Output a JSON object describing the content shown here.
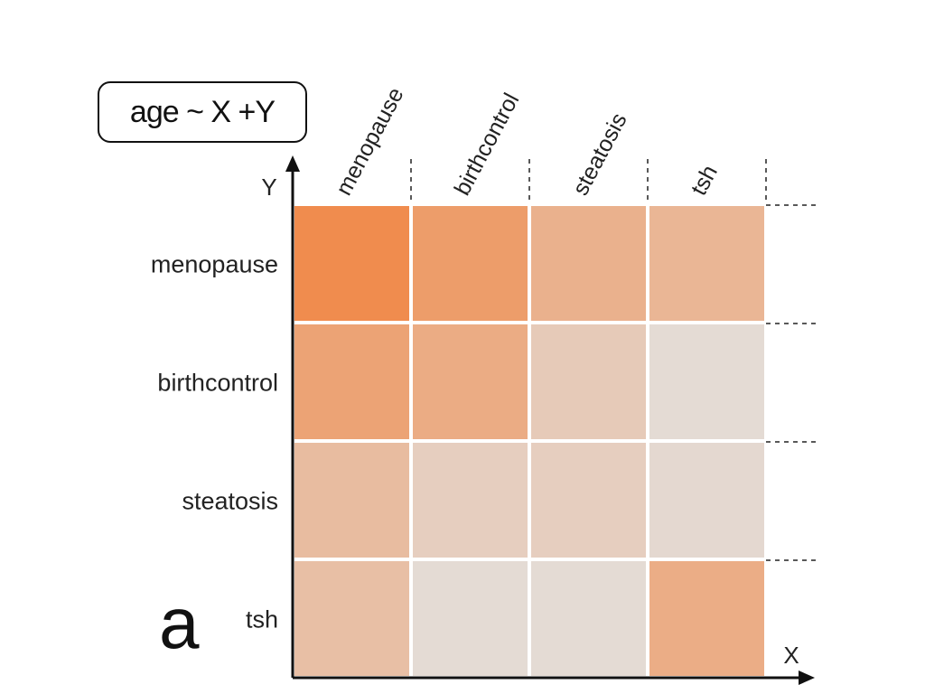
{
  "title": "age ~ X +Y",
  "panel_label": "a",
  "chart_data": {
    "type": "heatmap",
    "title": "age ~ X +Y",
    "xlabel": "X",
    "ylabel": "Y",
    "x_categories": [
      "menopause",
      "birthcontrol",
      "steatosis",
      "tsh"
    ],
    "y_categories": [
      "menopause",
      "birthcontrol",
      "steatosis",
      "tsh"
    ],
    "values": [
      [
        1.0,
        0.8,
        0.55,
        0.5
      ],
      [
        0.72,
        0.62,
        0.25,
        0.05
      ],
      [
        0.42,
        0.2,
        0.2,
        0.08
      ],
      [
        0.38,
        0.05,
        0.05,
        0.6
      ]
    ],
    "value_range": [
      0,
      1
    ],
    "color_low": "#e3dfdb",
    "color_high": "#f08c4e",
    "grid": false
  }
}
